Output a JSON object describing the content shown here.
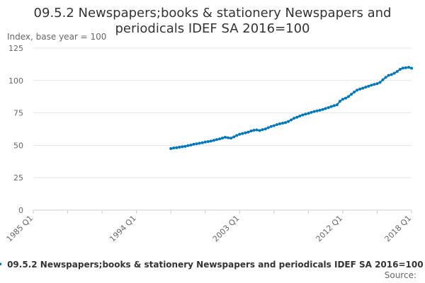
{
  "chart_data": {
    "type": "line",
    "title_line1": "09.5.2 Newspapers;books & stationery Newspapers and",
    "title_line2": "periodicals IDEF SA 2016=100",
    "ylabel": "Index, base year = 100",
    "xlabel": "",
    "ylim": [
      0,
      125
    ],
    "yticks": [
      0,
      25,
      50,
      75,
      100,
      125
    ],
    "x_range": [
      "1985 Q1",
      "2018 Q1"
    ],
    "xtick_labels": [
      "1985 Q1",
      "1994 Q1",
      "2003 Q1",
      "2012 Q1",
      "2018 Q1"
    ],
    "grid": true,
    "legend_position": "bottom",
    "series": [
      {
        "name": "09.5.2 Newspapers;books & stationery Newspapers and periodicals IDEF SA 2016=100",
        "color": "#0077bb",
        "x": [
          "1997 Q1",
          "1997 Q2",
          "1997 Q3",
          "1997 Q4",
          "1998 Q1",
          "1998 Q2",
          "1998 Q3",
          "1998 Q4",
          "1999 Q1",
          "1999 Q2",
          "1999 Q3",
          "1999 Q4",
          "2000 Q1",
          "2000 Q2",
          "2000 Q3",
          "2000 Q4",
          "2001 Q1",
          "2001 Q2",
          "2001 Q3",
          "2001 Q4",
          "2002 Q1",
          "2002 Q2",
          "2002 Q3",
          "2002 Q4",
          "2003 Q1",
          "2003 Q2",
          "2003 Q3",
          "2003 Q4",
          "2004 Q1",
          "2004 Q2",
          "2004 Q3",
          "2004 Q4",
          "2005 Q1",
          "2005 Q2",
          "2005 Q3",
          "2005 Q4",
          "2006 Q1",
          "2006 Q2",
          "2006 Q3",
          "2006 Q4",
          "2007 Q1",
          "2007 Q2",
          "2007 Q3",
          "2007 Q4",
          "2008 Q1",
          "2008 Q2",
          "2008 Q3",
          "2008 Q4",
          "2009 Q1",
          "2009 Q2",
          "2009 Q3",
          "2009 Q4",
          "2010 Q1",
          "2010 Q2",
          "2010 Q3",
          "2010 Q4",
          "2011 Q1",
          "2011 Q2",
          "2011 Q3",
          "2011 Q4",
          "2012 Q1",
          "2012 Q2",
          "2012 Q3",
          "2012 Q4",
          "2013 Q1",
          "2013 Q2",
          "2013 Q3",
          "2013 Q4",
          "2014 Q1",
          "2014 Q2",
          "2014 Q3",
          "2014 Q4",
          "2015 Q1",
          "2015 Q2",
          "2015 Q3",
          "2015 Q4",
          "2016 Q1",
          "2016 Q2",
          "2016 Q3",
          "2016 Q4",
          "2017 Q1",
          "2017 Q2",
          "2017 Q3",
          "2017 Q4",
          "2018 Q1"
        ],
        "values": [
          47.5,
          48,
          48.2,
          48.6,
          48.9,
          49.2,
          49.8,
          50.2,
          50.8,
          51.2,
          51.6,
          52.0,
          52.5,
          52.9,
          53.3,
          53.8,
          54.4,
          54.9,
          55.6,
          56.2,
          55.8,
          55.5,
          56.5,
          57.6,
          58.5,
          59.1,
          59.6,
          60.2,
          61.1,
          61.6,
          61.9,
          61.4,
          62.1,
          62.6,
          63.6,
          64.6,
          65.2,
          66.0,
          66.6,
          67.1,
          67.6,
          68.4,
          69.6,
          70.9,
          71.6,
          72.6,
          73.4,
          74.1,
          74.6,
          75.4,
          76.1,
          76.6,
          77.0,
          77.6,
          78.4,
          79.1,
          79.9,
          80.6,
          81.3,
          84.0,
          85.6,
          86.4,
          87.6,
          89.4,
          91.1,
          92.6,
          93.4,
          94.1,
          94.9,
          95.6,
          96.4,
          97.0,
          97.6,
          98.5,
          100.6,
          102.4,
          104.0,
          104.6,
          105.6,
          107.0,
          108.6,
          109.6,
          109.9,
          110.2,
          109.5
        ]
      }
    ]
  },
  "source_label": "Source:"
}
